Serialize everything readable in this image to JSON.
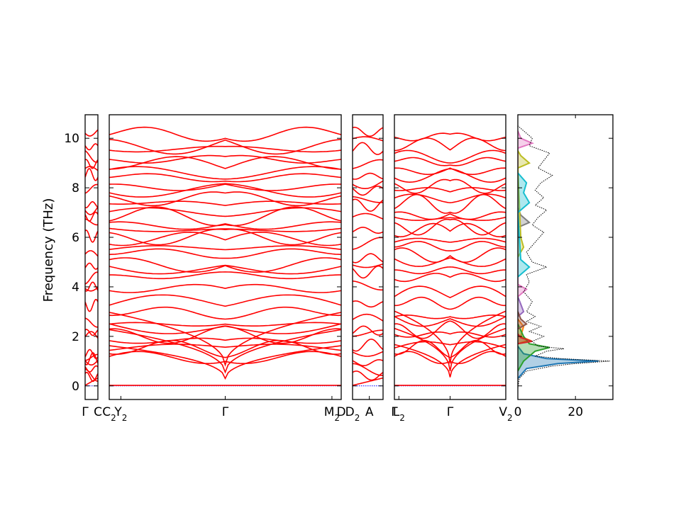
{
  "chart_data": {
    "type": "line",
    "ylabel": "Frequency (THz)",
    "ylim": [
      -0.55,
      10.95
    ],
    "y_ticks": [
      0,
      2,
      4,
      6,
      8,
      10
    ],
    "band_color": "#ff0000",
    "zero_line_color": "#0000ff",
    "panels": [
      {
        "segment": "Γ–C",
        "tick_labels": [
          {
            "text": "Γ",
            "sub": "",
            "at": 0
          },
          {
            "text": "C",
            "sub": "",
            "at": 1
          }
        ],
        "right_label": "C",
        "bands_at_left": [
          0,
          0.45,
          0.52,
          0.7,
          0.95,
          1.0,
          1.12,
          1.35,
          2.05,
          2.2,
          2.5,
          3.15,
          3.9,
          4.05,
          4.45,
          4.9,
          5.25,
          5.95,
          6.55,
          6.85,
          7.25,
          7.4,
          7.95,
          8.45,
          8.65,
          8.95,
          9.35,
          9.75,
          10.3
        ]
      },
      {
        "segment": "C2–Y2–Γ–M2–D",
        "tick_labels": [
          {
            "text": "C",
            "sub": "2",
            "at": 0
          },
          {
            "text": "Y",
            "sub": "2",
            "at": 0.05
          },
          {
            "text": "Γ",
            "sub": "",
            "at": 0.5
          },
          {
            "text": "M",
            "sub": "2",
            "at": 0.96
          },
          {
            "text": "D",
            "sub": "",
            "at": 1
          }
        ],
        "gamma_position": 0.5,
        "bands_at_gamma": [
          0,
          0.3,
          0.55,
          0.85,
          1.2,
          1.45,
          1.6,
          1.75,
          2.1,
          2.3,
          2.55,
          2.9,
          3.4,
          3.85,
          4.5,
          4.7,
          4.95,
          5.3,
          5.6,
          5.85,
          6.05,
          6.25,
          6.55,
          6.8,
          7.05,
          7.3,
          7.6,
          7.85,
          8.1,
          8.35,
          8.65,
          8.9,
          9.2,
          9.5,
          9.75,
          10.1
        ]
      },
      {
        "segment": "D2–A",
        "tick_labels": [
          {
            "text": "D",
            "sub": "2",
            "at": 0
          },
          {
            "text": "A",
            "sub": "",
            "at": 0.55
          }
        ],
        "bands_at_left": [
          0,
          0.5,
          0.75,
          0.95,
          1.3,
          1.55,
          2.1,
          2.3,
          2.75,
          3.35,
          4.0,
          4.5,
          4.85,
          5.2,
          5.85,
          6.35,
          6.75,
          7.2,
          7.45,
          7.9,
          8.3,
          8.55,
          8.95,
          9.5,
          9.85,
          10.25
        ]
      },
      {
        "segment": "Γ–L2–Γ–V2",
        "tick_labels": [
          {
            "text": "Γ",
            "sub": "",
            "at": 0
          },
          {
            "text": "L",
            "sub": "2",
            "at": 0.04
          },
          {
            "text": "Γ",
            "sub": "",
            "at": 0.5
          },
          {
            "text": "V",
            "sub": "2",
            "at": 1
          }
        ],
        "gamma_position": 0.5,
        "bands_at_gamma": [
          0,
          0.35,
          0.6,
          0.9,
          1.2,
          1.45,
          1.7,
          2.0,
          2.3,
          2.6,
          2.85,
          3.3,
          3.75,
          4.3,
          4.7,
          5.0,
          5.35,
          5.6,
          5.9,
          6.2,
          6.45,
          6.7,
          6.95,
          7.3,
          7.6,
          7.85,
          8.1,
          8.45,
          8.75,
          9.0,
          9.3,
          9.65,
          10.1
        ]
      }
    ],
    "dos": {
      "type": "area",
      "x_ticks": [
        0,
        20
      ],
      "xlim": [
        0,
        33
      ],
      "total_color": "#000000",
      "total": [
        {
          "f": -0.1,
          "d": 0
        },
        {
          "f": 0.3,
          "d": 0.5
        },
        {
          "f": 0.6,
          "d": 3
        },
        {
          "f": 0.8,
          "d": 12
        },
        {
          "f": 0.9,
          "d": 20
        },
        {
          "f": 1.0,
          "d": 32
        },
        {
          "f": 1.1,
          "d": 15
        },
        {
          "f": 1.2,
          "d": 6
        },
        {
          "f": 1.4,
          "d": 10
        },
        {
          "f": 1.5,
          "d": 16
        },
        {
          "f": 1.6,
          "d": 7
        },
        {
          "f": 1.8,
          "d": 5
        },
        {
          "f": 2.0,
          "d": 9
        },
        {
          "f": 2.2,
          "d": 4
        },
        {
          "f": 2.4,
          "d": 8
        },
        {
          "f": 2.6,
          "d": 3
        },
        {
          "f": 2.8,
          "d": 6
        },
        {
          "f": 3.0,
          "d": 3
        },
        {
          "f": 3.4,
          "d": 5
        },
        {
          "f": 3.8,
          "d": 2
        },
        {
          "f": 4.2,
          "d": 4
        },
        {
          "f": 4.5,
          "d": 3
        },
        {
          "f": 4.8,
          "d": 10
        },
        {
          "f": 5.0,
          "d": 5
        },
        {
          "f": 5.4,
          "d": 3
        },
        {
          "f": 5.8,
          "d": 6
        },
        {
          "f": 6.2,
          "d": 9
        },
        {
          "f": 6.5,
          "d": 5
        },
        {
          "f": 6.8,
          "d": 7
        },
        {
          "f": 7.1,
          "d": 10
        },
        {
          "f": 7.3,
          "d": 6
        },
        {
          "f": 7.6,
          "d": 9
        },
        {
          "f": 7.9,
          "d": 6
        },
        {
          "f": 8.2,
          "d": 8
        },
        {
          "f": 8.5,
          "d": 12
        },
        {
          "f": 8.8,
          "d": 7
        },
        {
          "f": 9.1,
          "d": 9
        },
        {
          "f": 9.4,
          "d": 11
        },
        {
          "f": 9.7,
          "d": 4
        },
        {
          "f": 10.0,
          "d": 5
        },
        {
          "f": 10.3,
          "d": 2
        },
        {
          "f": 10.5,
          "d": 0
        }
      ],
      "partials": [
        {
          "color": "#1f77b4",
          "points": [
            {
              "f": 0.3,
              "d": 0
            },
            {
              "f": 0.7,
              "d": 3
            },
            {
              "f": 0.9,
              "d": 14
            },
            {
              "f": 1.0,
              "d": 28
            },
            {
              "f": 1.1,
              "d": 10
            },
            {
              "f": 1.3,
              "d": 2
            },
            {
              "f": 1.6,
              "d": 0
            }
          ]
        },
        {
          "color": "#ff7f0e",
          "points": [
            {
              "f": 1.7,
              "d": 0
            },
            {
              "f": 1.85,
              "d": 4
            },
            {
              "f": 2.0,
              "d": 1
            },
            {
              "f": 2.4,
              "d": 2
            },
            {
              "f": 2.7,
              "d": 0
            }
          ]
        },
        {
          "color": "#2ca02c",
          "points": [
            {
              "f": 0.6,
              "d": 0
            },
            {
              "f": 1.0,
              "d": 2
            },
            {
              "f": 1.4,
              "d": 6
            },
            {
              "f": 1.55,
              "d": 11
            },
            {
              "f": 1.7,
              "d": 4
            },
            {
              "f": 2.0,
              "d": 2
            },
            {
              "f": 2.5,
              "d": 0
            }
          ]
        },
        {
          "color": "#d62728",
          "points": [
            {
              "f": 1.7,
              "d": 0
            },
            {
              "f": 1.8,
              "d": 5
            },
            {
              "f": 1.95,
              "d": 1
            },
            {
              "f": 2.1,
              "d": 0
            }
          ]
        },
        {
          "color": "#9467bd",
          "points": [
            {
              "f": 2.8,
              "d": 0
            },
            {
              "f": 3.0,
              "d": 2
            },
            {
              "f": 3.3,
              "d": 1
            },
            {
              "f": 3.6,
              "d": 0
            }
          ]
        },
        {
          "color": "#8c564b",
          "points": [
            {
              "f": 2.3,
              "d": 0
            },
            {
              "f": 2.5,
              "d": 3
            },
            {
              "f": 2.7,
              "d": 1
            },
            {
              "f": 3.0,
              "d": 0
            }
          ]
        },
        {
          "color": "#e377c2",
          "points": [
            {
              "f": 3.6,
              "d": 0
            },
            {
              "f": 3.9,
              "d": 3
            },
            {
              "f": 4.1,
              "d": 0
            },
            {
              "f": 9.6,
              "d": 0
            },
            {
              "f": 9.8,
              "d": 5
            },
            {
              "f": 10.0,
              "d": 1
            },
            {
              "f": 10.3,
              "d": 0
            }
          ]
        },
        {
          "color": "#7f7f7f",
          "points": [
            {
              "f": 6.4,
              "d": 0
            },
            {
              "f": 6.6,
              "d": 4
            },
            {
              "f": 6.9,
              "d": 1
            },
            {
              "f": 7.2,
              "d": 0
            }
          ]
        },
        {
          "color": "#bcbd22",
          "points": [
            {
              "f": 5.2,
              "d": 0
            },
            {
              "f": 5.6,
              "d": 2
            },
            {
              "f": 6.0,
              "d": 1
            },
            {
              "f": 8.8,
              "d": 0
            },
            {
              "f": 9.0,
              "d": 4
            },
            {
              "f": 9.3,
              "d": 1
            },
            {
              "f": 9.5,
              "d": 0
            }
          ]
        },
        {
          "color": "#17becf",
          "points": [
            {
              "f": 4.4,
              "d": 0
            },
            {
              "f": 4.8,
              "d": 4
            },
            {
              "f": 5.1,
              "d": 1
            },
            {
              "f": 7.0,
              "d": 0
            },
            {
              "f": 7.4,
              "d": 4
            },
            {
              "f": 7.8,
              "d": 2
            },
            {
              "f": 8.2,
              "d": 3
            },
            {
              "f": 8.6,
              "d": 0
            }
          ]
        }
      ]
    }
  }
}
